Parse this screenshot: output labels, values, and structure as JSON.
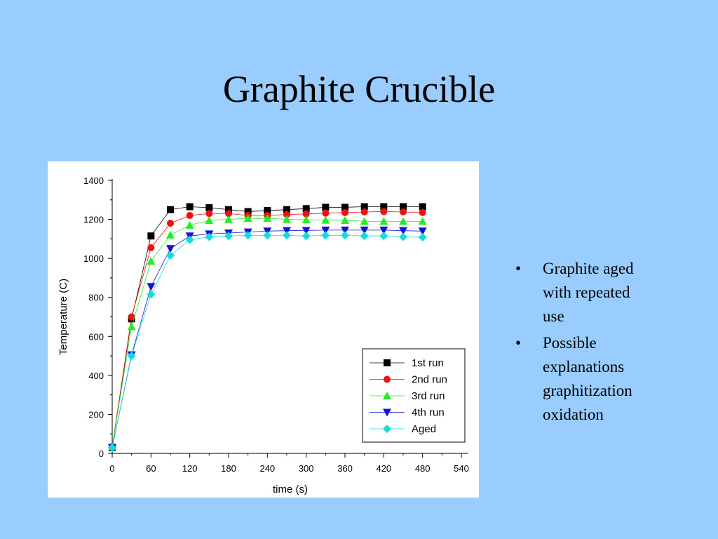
{
  "slide": {
    "title": "Graphite Crucible",
    "bullets": [
      {
        "marker": "•",
        "lines": [
          "Graphite aged",
          "with repeated",
          "use"
        ]
      },
      {
        "marker": "•",
        "lines": [
          "Possible",
          "explanations",
          "graphitization",
          "oxidation"
        ]
      }
    ]
  },
  "colors": {
    "background": "#99ccff",
    "panel": "#ffffff"
  },
  "chart_data": {
    "type": "line",
    "title": "",
    "xlabel": "time (s)",
    "ylabel": "Temperature (C)",
    "xlim": [
      0,
      540
    ],
    "ylim": [
      0,
      1400
    ],
    "xticks": [
      0,
      60,
      120,
      180,
      240,
      300,
      360,
      420,
      480,
      540
    ],
    "yticks": [
      0,
      200,
      400,
      600,
      800,
      1000,
      1200,
      1400
    ],
    "grid": false,
    "legend_position": "bottom-right",
    "x": [
      0,
      30,
      60,
      90,
      120,
      150,
      180,
      210,
      240,
      270,
      300,
      330,
      360,
      390,
      420,
      450,
      480
    ],
    "series": [
      {
        "name": "1st run",
        "color": "#000000",
        "marker": "square",
        "values": [
          30,
          690,
          1115,
          1250,
          1265,
          1260,
          1250,
          1240,
          1245,
          1250,
          1255,
          1262,
          1262,
          1265,
          1265,
          1265,
          1265
        ]
      },
      {
        "name": "2nd run",
        "color": "#ee1111",
        "marker": "circle",
        "values": [
          35,
          700,
          1055,
          1180,
          1220,
          1230,
          1230,
          1220,
          1220,
          1225,
          1228,
          1232,
          1235,
          1238,
          1240,
          1238,
          1235
        ]
      },
      {
        "name": "3rd run",
        "color": "#22ee22",
        "marker": "triangle-up",
        "values": [
          35,
          650,
          985,
          1120,
          1170,
          1195,
          1200,
          1205,
          1205,
          1200,
          1198,
          1196,
          1195,
          1190,
          1190,
          1190,
          1190
        ]
      },
      {
        "name": "4th run",
        "color": "#1111dd",
        "marker": "triangle-down",
        "values": [
          30,
          505,
          855,
          1050,
          1115,
          1125,
          1130,
          1135,
          1140,
          1142,
          1143,
          1145,
          1145,
          1145,
          1145,
          1142,
          1140
        ]
      },
      {
        "name": "Aged",
        "color": "#11dddd",
        "marker": "diamond",
        "values": [
          30,
          500,
          815,
          1015,
          1095,
          1110,
          1115,
          1118,
          1118,
          1118,
          1115,
          1118,
          1118,
          1115,
          1115,
          1110,
          1108
        ]
      }
    ]
  }
}
